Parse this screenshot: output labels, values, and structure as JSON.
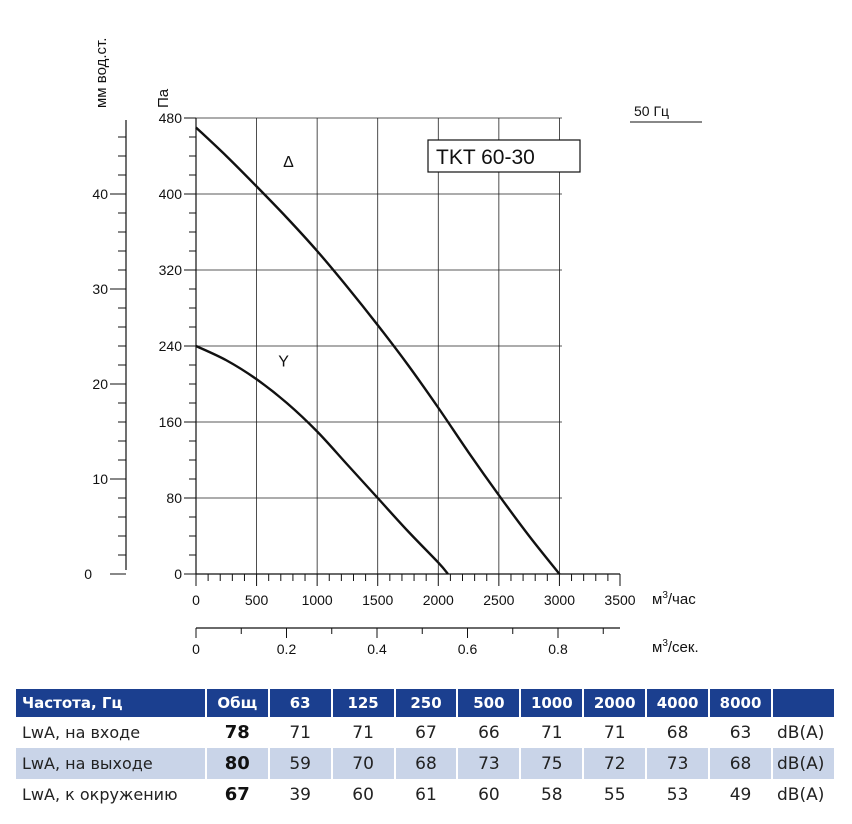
{
  "chart_data": {
    "type": "line",
    "model_label": "TKT 60-30",
    "frequency_label": "50 Гц",
    "y_left_label": "мм вод.ст.",
    "y_right_label": "Па",
    "x_label_primary": "м³/час",
    "x_label_secondary": "м³/сек.",
    "x_ticks_primary": [
      "0",
      "500",
      "1000",
      "1500",
      "2000",
      "2500",
      "3000",
      "3500"
    ],
    "x_ticks_secondary": [
      "0",
      "0.2",
      "0.4",
      "0.6",
      "0.8"
    ],
    "y_ticks_pa": [
      "0",
      "80",
      "160",
      "240",
      "320",
      "400",
      "480"
    ],
    "y_ticks_mm": [
      "0",
      "10",
      "20",
      "30",
      "40"
    ],
    "xlim": [
      0,
      3500
    ],
    "ylim": [
      0,
      480
    ],
    "grid": true,
    "series": [
      {
        "name": "Δ",
        "x": [
          0,
          250,
          500,
          750,
          1000,
          1250,
          1500,
          1750,
          2000,
          2250,
          2500,
          2750,
          3000
        ],
        "y": [
          470,
          440,
          408,
          375,
          340,
          302,
          262,
          220,
          175,
          128,
          83,
          40,
          0
        ]
      },
      {
        "name": "Y",
        "x": [
          0,
          250,
          500,
          750,
          1000,
          1250,
          1500,
          1750,
          2000,
          2080
        ],
        "y": [
          240,
          225,
          205,
          180,
          150,
          115,
          80,
          45,
          12,
          0
        ]
      }
    ]
  },
  "table": {
    "headers": [
      "Частота, Гц",
      "Общ",
      "63",
      "125",
      "250",
      "500",
      "1000",
      "2000",
      "4000",
      "8000",
      ""
    ],
    "rows": [
      {
        "label": "LwA, на входе",
        "total": "78",
        "values": [
          "71",
          "71",
          "67",
          "66",
          "71",
          "71",
          "68",
          "63"
        ],
        "unit": "dB(A)"
      },
      {
        "label": "LwA, на выходе",
        "total": "80",
        "values": [
          "59",
          "70",
          "68",
          "73",
          "75",
          "72",
          "73",
          "68"
        ],
        "unit": "dB(A)"
      },
      {
        "label": "LwA, к окружению",
        "total": "67",
        "values": [
          "39",
          "60",
          "61",
          "60",
          "58",
          "55",
          "53",
          "49"
        ],
        "unit": "dB(A)"
      }
    ]
  }
}
